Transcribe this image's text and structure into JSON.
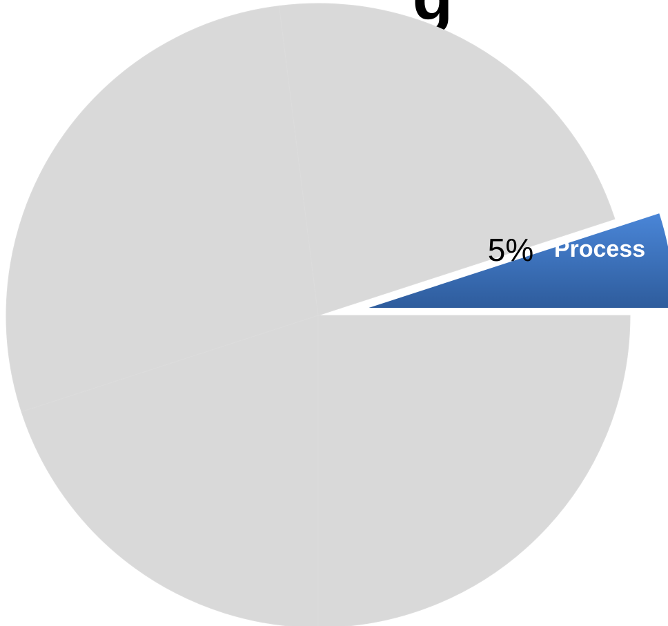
{
  "chart_data": {
    "type": "pie",
    "title_fragment": "g",
    "slices": [
      {
        "name": "Process",
        "value": 5,
        "label": "5%",
        "category_label": "Process",
        "color": "#3A6DB5",
        "exploded": true
      },
      {
        "name": "",
        "value": 22,
        "label": "",
        "category_label": "",
        "color": "#D9D9D9",
        "exploded": false
      },
      {
        "name": "",
        "value": 28,
        "label": "",
        "category_label": "",
        "color": "#D9D9D9",
        "exploded": false
      },
      {
        "name": "",
        "value": 20,
        "label": "",
        "category_label": "",
        "color": "#D9D9D9",
        "exploded": false
      },
      {
        "name": "",
        "value": 25,
        "label": "",
        "category_label": "",
        "color": "#D9D9D9",
        "exploded": false
      }
    ],
    "start_angle_deg": 0,
    "direction": "counterclockwise",
    "legend": "none"
  }
}
